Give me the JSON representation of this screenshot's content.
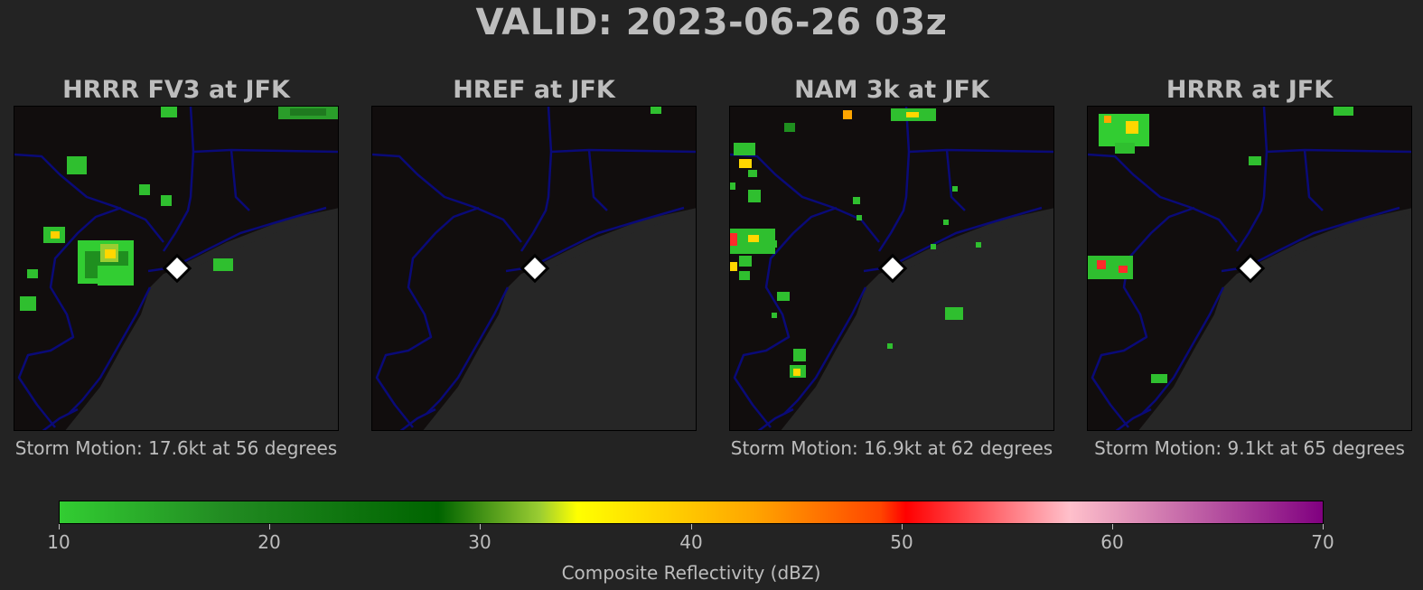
{
  "title": "VALID: 2023-06-26 03z",
  "panels": [
    {
      "title": "HRRR FV3 at JFK",
      "motion": "Storm Motion: 17.6kt at 56 degrees"
    },
    {
      "title": "HREF at JFK",
      "motion": ""
    },
    {
      "title": "NAM 3k at JFK",
      "motion": "Storm Motion: 16.9kt at 62 degrees"
    },
    {
      "title": "HRRR at JFK",
      "motion": "Storm Motion: 9.1kt at 65 degrees"
    }
  ],
  "colorbar": {
    "label": "Composite Reflectivity (dBZ)",
    "ticks": [
      "10",
      "20",
      "30",
      "40",
      "50",
      "60",
      "70"
    ],
    "range": [
      10,
      70
    ]
  },
  "colors": {
    "background": "#232323",
    "land": "#110d0d",
    "water": "#262626",
    "borders": "#0a0a78",
    "marker": "#ffffff"
  }
}
